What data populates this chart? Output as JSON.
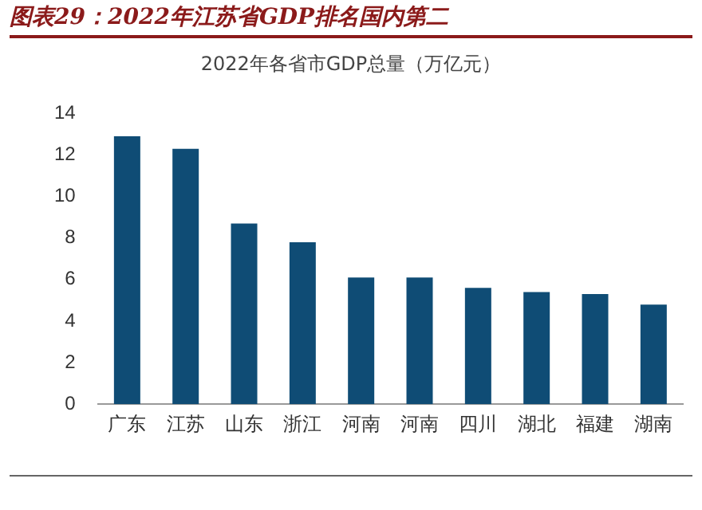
{
  "chart_data": {
    "type": "bar",
    "title": "图表29：2022年江苏省GDP排名国内第二",
    "subtitle": "2022年各省市GDP总量（万亿元）",
    "categories": [
      "广东",
      "江苏",
      "山东",
      "浙江",
      "河南",
      "河南",
      "四川",
      "湖北",
      "福建",
      "湖南"
    ],
    "values": [
      12.9,
      12.3,
      8.7,
      7.8,
      6.1,
      6.1,
      5.6,
      5.4,
      5.3,
      4.8
    ],
    "color": "#0f4c75",
    "ylim": [
      0,
      14
    ],
    "yticks": [
      0,
      2,
      4,
      6,
      8,
      10,
      12,
      14
    ],
    "grid": false,
    "legend": false
  }
}
